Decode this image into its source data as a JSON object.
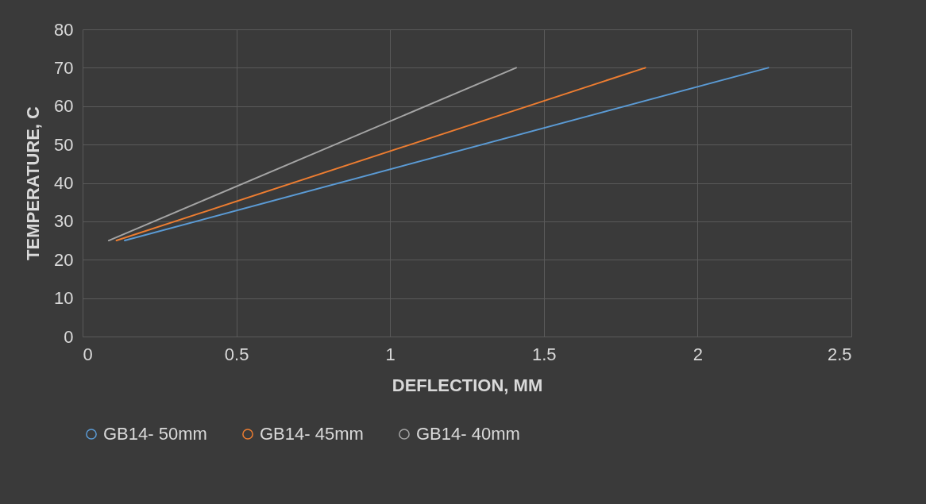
{
  "chart_data": {
    "type": "line",
    "xlabel": "DEFLECTION, MM",
    "ylabel": "TEMPERATURE, C",
    "xlim": [
      0,
      2.5
    ],
    "xticks": [
      0,
      0.5,
      1,
      1.5,
      2,
      2.5
    ],
    "ylim": [
      0,
      80
    ],
    "yticks": [
      0,
      10,
      20,
      30,
      40,
      50,
      60,
      70,
      80
    ],
    "grid": true,
    "legend": "bottom",
    "series": [
      {
        "name": "GB14- 50mm",
        "color": "#5b9bd5",
        "x": [
          0.137,
          2.23
        ],
        "values": [
          25,
          70
        ]
      },
      {
        "name": "GB14- 45mm",
        "color": "#ed7d31",
        "x": [
          0.11,
          1.83
        ],
        "values": [
          25,
          70
        ]
      },
      {
        "name": "GB14- 40mm",
        "color": "#a5a5a5",
        "x": [
          0.085,
          1.41
        ],
        "values": [
          25,
          70
        ]
      }
    ]
  }
}
